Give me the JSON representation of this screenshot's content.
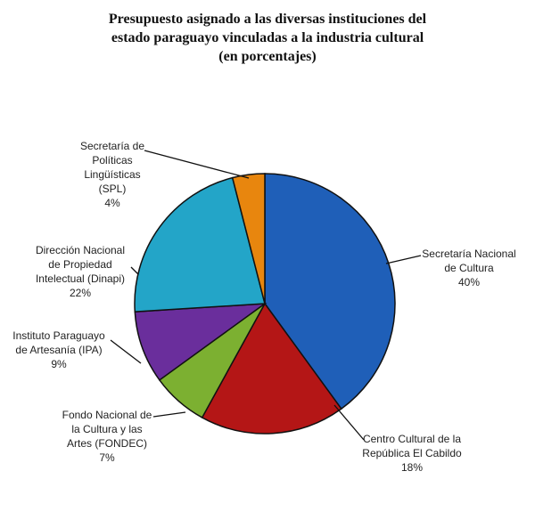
{
  "chart_data": {
    "type": "pie",
    "title_lines": [
      "Presupuesto asignado a las diversas instituciones del",
      "estado paraguayo vinculadas a la industria cultural",
      "(en porcentajes)"
    ],
    "slices": [
      {
        "label_lines": [
          "Secretaría Nacional",
          "de Cultura",
          "40%"
        ],
        "value": 40,
        "color": "#1f5fb8"
      },
      {
        "label_lines": [
          "Centro Cultural de la",
          "República El Cabildo",
          "18%"
        ],
        "value": 18,
        "color": "#b41616"
      },
      {
        "label_lines": [
          "Fondo Nacional de",
          "la Cultura y las",
          "Artes (FONDEC)",
          "7%"
        ],
        "value": 7,
        "color": "#7cb031"
      },
      {
        "label_lines": [
          "Instituto Paraguayo",
          "de Artesanía (IPA)",
          "9%"
        ],
        "value": 9,
        "color": "#6a2e9c"
      },
      {
        "label_lines": [
          "Dirección Nacional",
          "de Propiedad",
          "Intelectual (Dinapi)",
          "22%"
        ],
        "value": 22,
        "color": "#23a5c8"
      },
      {
        "label_lines": [
          "Secretaría de",
          "Políticas",
          "Lingüísticas",
          "(SPL)",
          "4%"
        ],
        "value": 4,
        "color": "#e8860e"
      }
    ]
  }
}
